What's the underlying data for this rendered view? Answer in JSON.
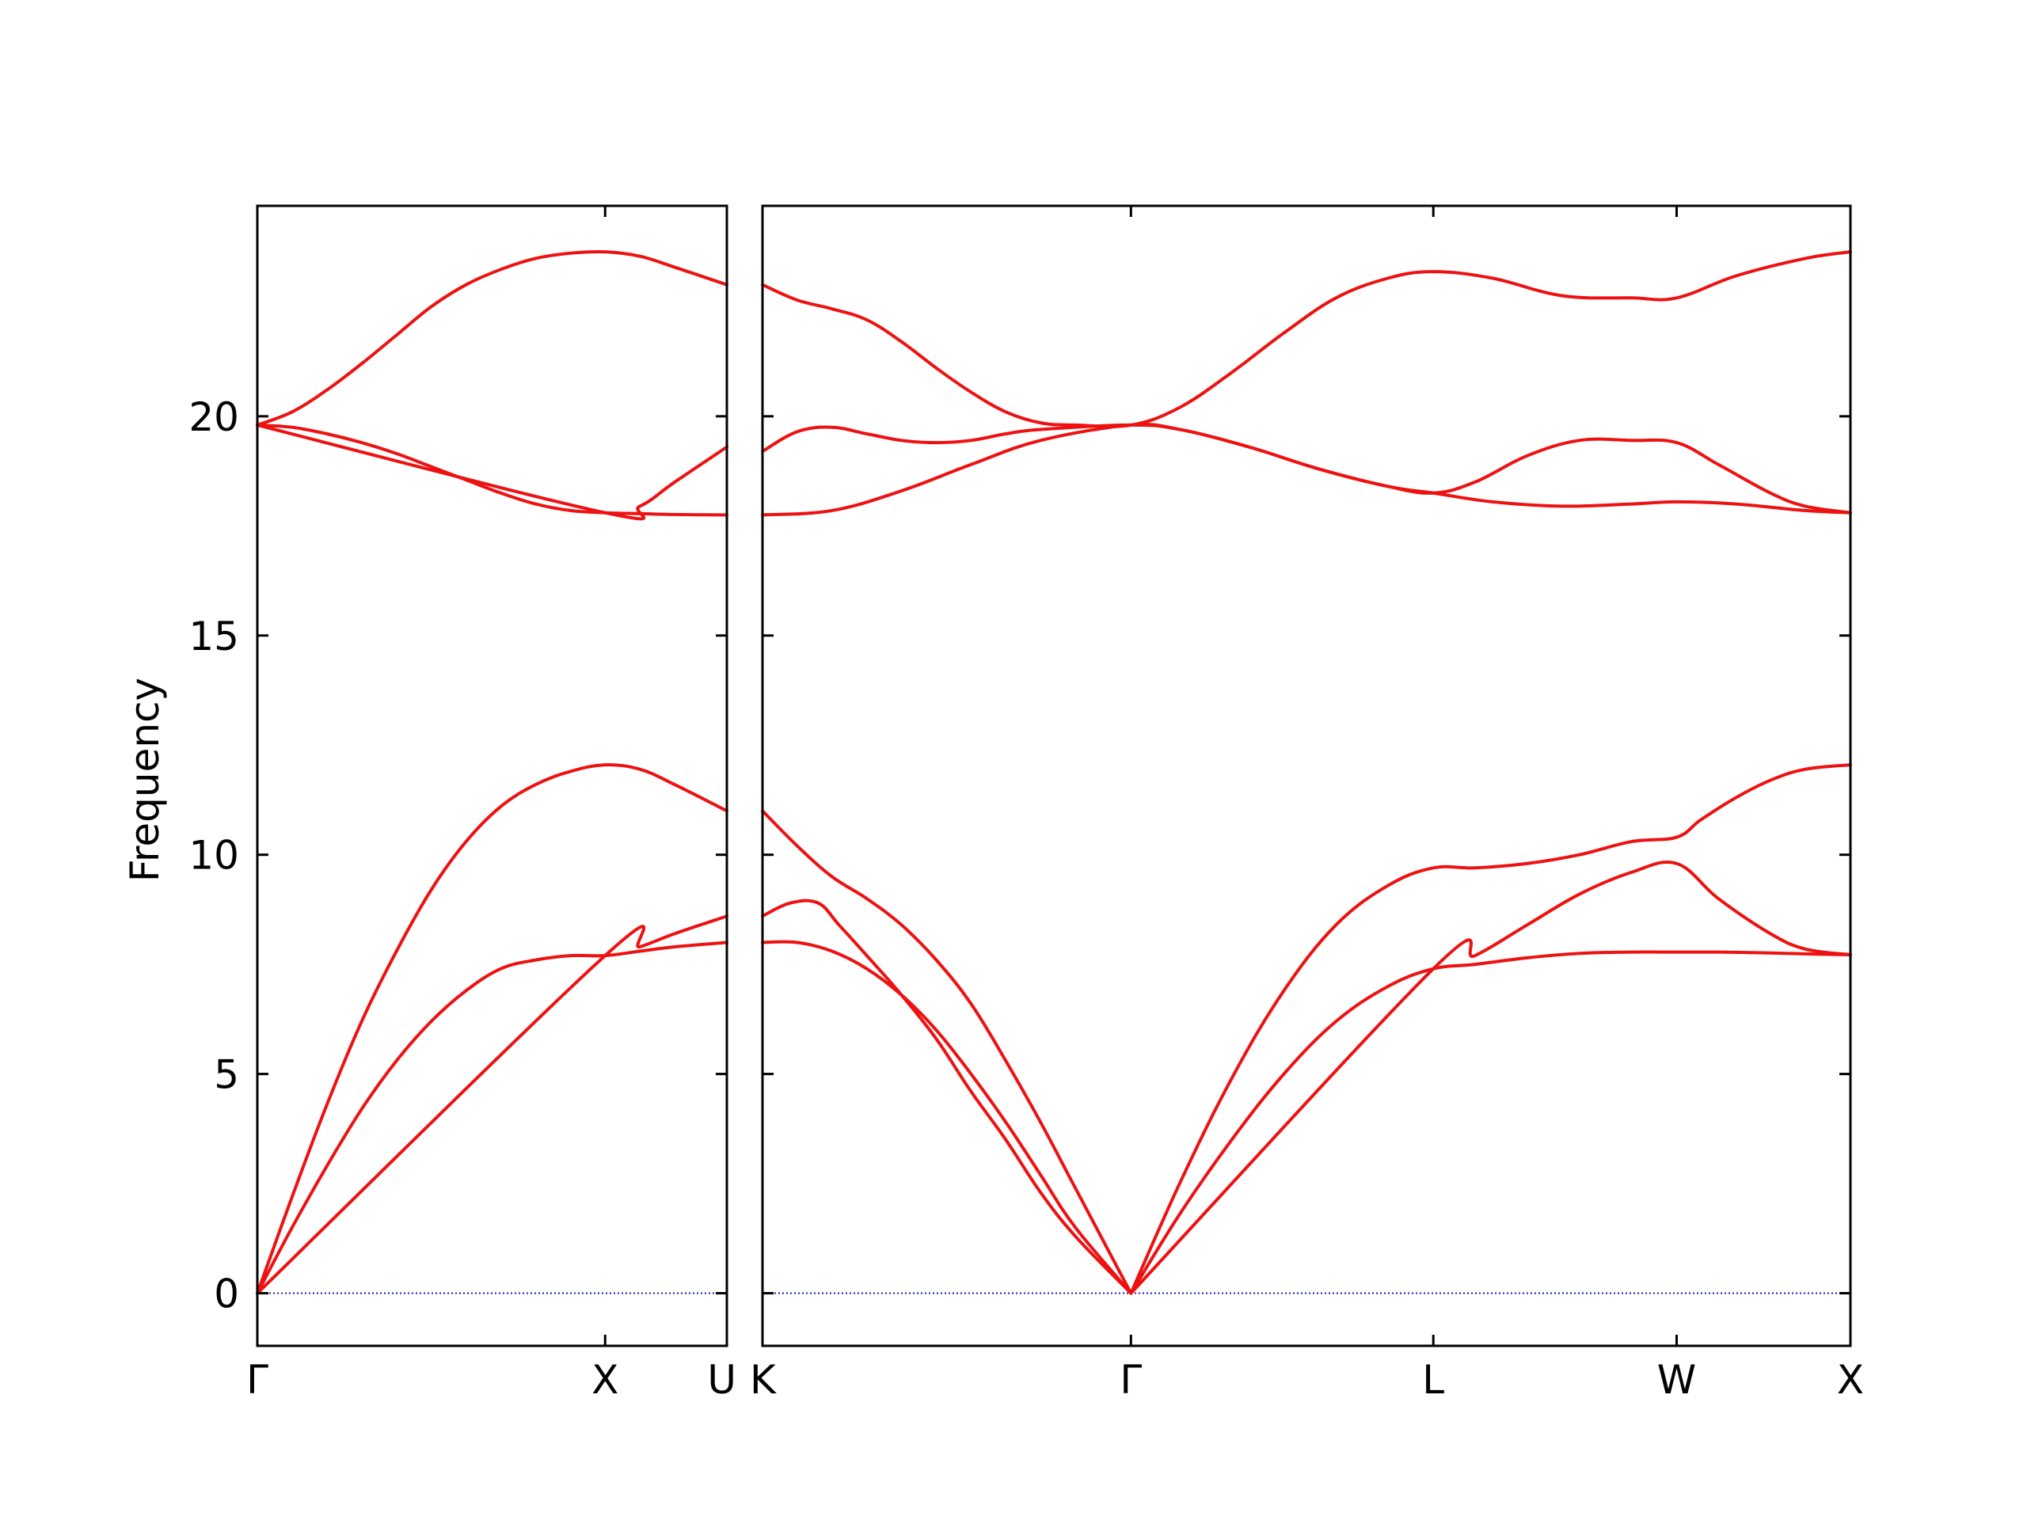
{
  "chart_data": {
    "type": "line",
    "ylabel": "Frequency",
    "ylim": [
      -1.2,
      24.8
    ],
    "yticks": [
      0,
      5,
      10,
      15,
      20
    ],
    "line_color": "#ee1111",
    "zero_line_color": "#1a1aa6",
    "panels": [
      {
        "xrange": [
          0,
          1.35
        ],
        "xticks": [
          {
            "x": 0,
            "label": "Γ"
          },
          {
            "x": 1.0,
            "label": "X"
          },
          {
            "x": 1.35,
            "label": "U"
          }
        ],
        "series": [
          {
            "x": [
              0,
              0.1,
              0.2,
              0.3,
              0.4,
              0.5,
              0.6,
              0.7,
              0.8,
              0.9,
              1.0,
              1.1,
              1.2,
              1.35
            ],
            "y": [
              0,
              1.5,
              2.9,
              4.2,
              5.3,
              6.2,
              6.9,
              7.4,
              7.6,
              7.7,
              7.7,
              7.8,
              7.9,
              8.0
            ]
          },
          {
            "x": [
              0,
              1.0,
              1.1,
              1.2,
              1.35
            ],
            "y": [
              0,
              7.7,
              7.9,
              8.2,
              8.6
            ]
          },
          {
            "x": [
              0,
              0.1,
              0.2,
              0.3,
              0.4,
              0.5,
              0.6,
              0.7,
              0.8,
              0.9,
              1.0,
              1.1,
              1.2,
              1.35
            ],
            "y": [
              0,
              2.2,
              4.3,
              6.2,
              7.8,
              9.2,
              10.3,
              11.1,
              11.6,
              11.9,
              12.05,
              11.95,
              11.6,
              11.0
            ]
          },
          {
            "x": [
              0,
              0.1,
              0.2,
              0.3,
              0.4,
              0.5,
              0.6,
              0.7,
              0.8,
              0.9,
              1.0,
              1.1,
              1.2,
              1.35
            ],
            "y": [
              19.8,
              19.75,
              19.6,
              19.4,
              19.15,
              18.85,
              18.55,
              18.25,
              18.0,
              17.85,
              17.8,
              17.78,
              17.76,
              17.75
            ]
          },
          {
            "x": [
              0,
              1.0,
              1.1,
              1.2,
              1.35
            ],
            "y": [
              19.8,
              17.8,
              17.95,
              18.5,
              19.3
            ]
          },
          {
            "x": [
              0,
              0.1,
              0.2,
              0.3,
              0.4,
              0.5,
              0.6,
              0.7,
              0.8,
              0.9,
              1.0,
              1.1,
              1.2,
              1.35
            ],
            "y": [
              19.8,
              20.1,
              20.6,
              21.2,
              21.85,
              22.5,
              23.0,
              23.35,
              23.6,
              23.72,
              23.75,
              23.65,
              23.4,
              23.0
            ]
          }
        ]
      },
      {
        "xrange": [
          0,
          3.13
        ],
        "xticks": [
          {
            "x": 0,
            "label": "K"
          },
          {
            "x": 1.06,
            "label": "Γ"
          },
          {
            "x": 1.93,
            "label": "L"
          },
          {
            "x": 2.63,
            "label": "W"
          },
          {
            "x": 3.13,
            "label": "X"
          }
        ],
        "series": [
          {
            "x": [
              0,
              0.1,
              0.2,
              0.3,
              0.4,
              0.5,
              0.6,
              0.7,
              0.8,
              0.9,
              1.06
            ],
            "y": [
              8.0,
              8.0,
              7.8,
              7.4,
              6.8,
              6.0,
              5.0,
              3.9,
              2.7,
              1.5,
              0
            ]
          },
          {
            "x": [
              0,
              0.08,
              0.16,
              0.22,
              0.3,
              0.4,
              0.5,
              0.6,
              0.7,
              0.8,
              0.9,
              1.06
            ],
            "y": [
              8.6,
              8.9,
              8.9,
              8.4,
              7.7,
              6.8,
              5.8,
              4.6,
              3.5,
              2.3,
              1.3,
              0
            ]
          },
          {
            "x": [
              0,
              0.1,
              0.2,
              0.3,
              0.4,
              0.5,
              0.6,
              0.7,
              0.8,
              0.9,
              1.06
            ],
            "y": [
              11.0,
              10.2,
              9.5,
              9.0,
              8.4,
              7.6,
              6.6,
              5.3,
              3.9,
              2.4,
              0
            ]
          },
          {
            "x": [
              1.06,
              1.2,
              1.35,
              1.5,
              1.65,
              1.8,
              1.93,
              2.05,
              2.2,
              2.35,
              2.5,
              2.63,
              2.75,
              2.9,
              3.0,
              3.13
            ],
            "y": [
              0,
              1.8,
              3.5,
              5.0,
              6.2,
              7.0,
              7.4,
              7.5,
              7.65,
              7.75,
              7.78,
              7.78,
              7.78,
              7.76,
              7.74,
              7.72
            ]
          },
          {
            "x": [
              1.06,
              1.93,
              2.05,
              2.2,
              2.35,
              2.5,
              2.63,
              2.75,
              2.9,
              3.0,
              3.13
            ],
            "y": [
              0,
              7.4,
              7.7,
              8.4,
              9.1,
              9.6,
              9.8,
              9.0,
              8.2,
              7.85,
              7.72
            ]
          },
          {
            "x": [
              1.06,
              1.2,
              1.35,
              1.5,
              1.65,
              1.8,
              1.93,
              2.05,
              2.2,
              2.35,
              2.5,
              2.63,
              2.7,
              2.8,
              2.9,
              3.0,
              3.13
            ],
            "y": [
              0,
              2.5,
              4.9,
              6.9,
              8.4,
              9.3,
              9.7,
              9.7,
              9.8,
              10.0,
              10.3,
              10.4,
              10.8,
              11.3,
              11.7,
              11.95,
              12.05
            ]
          },
          {
            "x": [
              0,
              0.2,
              0.4,
              0.6,
              0.8,
              1.06,
              1.2,
              1.4,
              1.6,
              1.8,
              1.93,
              2.1,
              2.3,
              2.5,
              2.63,
              2.8,
              3.0,
              3.13
            ],
            "y": [
              17.75,
              17.85,
              18.3,
              18.9,
              19.45,
              19.8,
              19.7,
              19.3,
              18.8,
              18.4,
              18.25,
              18.05,
              17.95,
              18.0,
              18.05,
              18.0,
              17.85,
              17.8
            ]
          },
          {
            "x": [
              0,
              0.1,
              0.2,
              0.3,
              0.4,
              0.5,
              0.6,
              0.7,
              0.8,
              1.06,
              1.2,
              1.4,
              1.6,
              1.8,
              1.93,
              2.05,
              2.2,
              2.35,
              2.5,
              2.63,
              2.75,
              2.9,
              3.0,
              3.13
            ],
            "y": [
              19.2,
              19.65,
              19.75,
              19.6,
              19.45,
              19.4,
              19.45,
              19.6,
              19.7,
              19.8,
              19.7,
              19.3,
              18.8,
              18.4,
              18.25,
              18.5,
              19.1,
              19.45,
              19.45,
              19.4,
              18.9,
              18.25,
              17.95,
              17.8
            ]
          },
          {
            "x": [
              0,
              0.1,
              0.2,
              0.3,
              0.4,
              0.5,
              0.6,
              0.7,
              0.8,
              0.9,
              1.06,
              1.2,
              1.35,
              1.5,
              1.65,
              1.8,
              1.93,
              2.1,
              2.3,
              2.5,
              2.63,
              2.8,
              3.0,
              3.13
            ],
            "y": [
              23.0,
              22.65,
              22.45,
              22.2,
              21.7,
              21.1,
              20.55,
              20.1,
              19.85,
              19.8,
              19.8,
              20.2,
              21.0,
              21.9,
              22.7,
              23.15,
              23.3,
              23.15,
              22.75,
              22.7,
              22.7,
              23.2,
              23.6,
              23.75
            ]
          }
        ]
      }
    ]
  }
}
